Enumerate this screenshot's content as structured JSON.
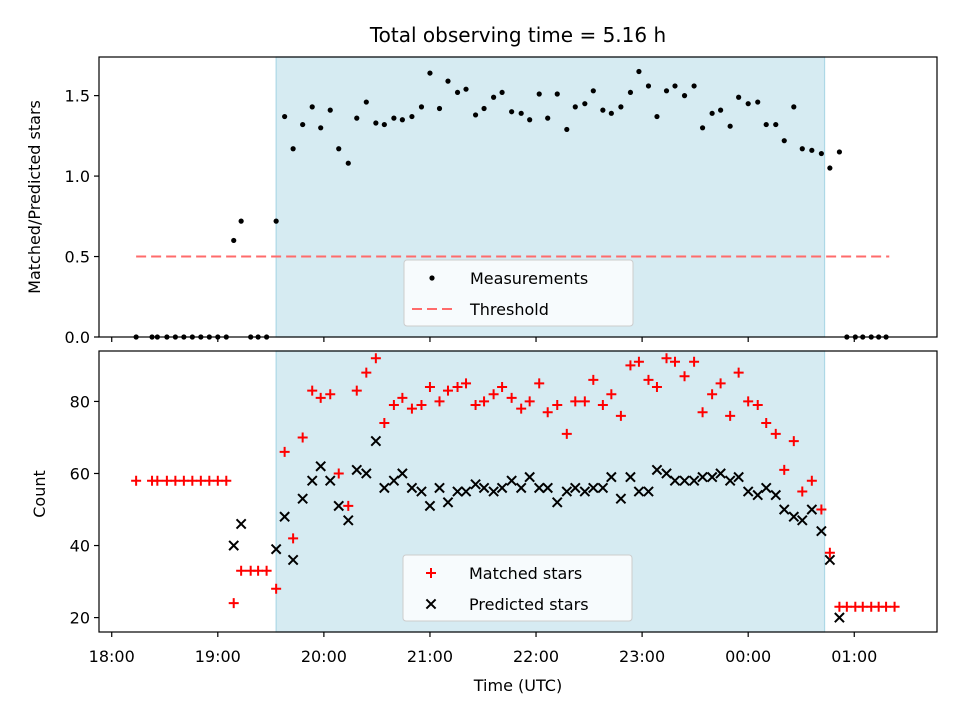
{
  "figure": {
    "title": "Total observing time = 5.16 h",
    "xlabel": "Time (UTC)",
    "xticks": [
      "18:00",
      "19:00",
      "20:00",
      "21:00",
      "22:00",
      "23:00",
      "00:00",
      "01:00"
    ]
  },
  "colors": {
    "band": "#add8e6",
    "threshold": "#ff6b6b",
    "matched": "#ff0000",
    "predicted": "#000000",
    "measurement": "#000000"
  },
  "top": {
    "ylabel": "Matched/Predicted stars",
    "yticks": [
      "0.0",
      "0.5",
      "1.0",
      "1.5"
    ],
    "legend": [
      "Measurements",
      "Threshold"
    ]
  },
  "bottom": {
    "ylabel": "Count",
    "yticks": [
      "20",
      "40",
      "60",
      "80"
    ],
    "legend": [
      "Matched stars",
      "Predicted stars"
    ]
  },
  "chart_data": [
    {
      "type": "scatter",
      "ylabel": "Matched/Predicted stars",
      "xlabel": "",
      "x_unit": "hours since 18:00 UTC",
      "xlim": [
        -0.12,
        7.78
      ],
      "ylim": [
        0,
        1.74
      ],
      "highlight_band": [
        1.55,
        6.72
      ],
      "threshold": {
        "name": "Threshold",
        "value": 0.5,
        "x_range": [
          0.23,
          7.33
        ]
      },
      "series": [
        {
          "name": "Measurements",
          "points": [
            [
              0.23,
              0
            ],
            [
              0.38,
              0
            ],
            [
              0.43,
              0
            ],
            [
              0.52,
              0
            ],
            [
              0.6,
              0
            ],
            [
              0.68,
              0
            ],
            [
              0.76,
              0
            ],
            [
              0.84,
              0
            ],
            [
              0.92,
              0
            ],
            [
              1.0,
              0
            ],
            [
              1.08,
              0
            ],
            [
              1.15,
              0.6
            ],
            [
              1.22,
              0.72
            ],
            [
              1.31,
              0
            ],
            [
              1.38,
              0
            ],
            [
              1.46,
              0
            ],
            [
              1.55,
              0.72
            ],
            [
              1.63,
              1.37
            ],
            [
              1.71,
              1.17
            ],
            [
              1.8,
              1.32
            ],
            [
              1.89,
              1.43
            ],
            [
              1.97,
              1.3
            ],
            [
              2.06,
              1.41
            ],
            [
              2.14,
              1.17
            ],
            [
              2.23,
              1.08
            ],
            [
              2.31,
              1.36
            ],
            [
              2.4,
              1.46
            ],
            [
              2.49,
              1.33
            ],
            [
              2.57,
              1.32
            ],
            [
              2.66,
              1.36
            ],
            [
              2.74,
              1.35
            ],
            [
              2.83,
              1.37
            ],
            [
              2.92,
              1.43
            ],
            [
              3.0,
              1.64
            ],
            [
              3.09,
              1.42
            ],
            [
              3.17,
              1.59
            ],
            [
              3.26,
              1.52
            ],
            [
              3.34,
              1.54
            ],
            [
              3.43,
              1.38
            ],
            [
              3.51,
              1.42
            ],
            [
              3.6,
              1.49
            ],
            [
              3.68,
              1.52
            ],
            [
              3.77,
              1.4
            ],
            [
              3.86,
              1.39
            ],
            [
              3.94,
              1.35
            ],
            [
              4.03,
              1.51
            ],
            [
              4.11,
              1.36
            ],
            [
              4.2,
              1.51
            ],
            [
              4.29,
              1.29
            ],
            [
              4.37,
              1.43
            ],
            [
              4.46,
              1.45
            ],
            [
              4.54,
              1.53
            ],
            [
              4.63,
              1.41
            ],
            [
              4.71,
              1.39
            ],
            [
              4.8,
              1.43
            ],
            [
              4.89,
              1.52
            ],
            [
              4.97,
              1.65
            ],
            [
              5.06,
              1.56
            ],
            [
              5.14,
              1.37
            ],
            [
              5.23,
              1.53
            ],
            [
              5.31,
              1.56
            ],
            [
              5.4,
              1.5
            ],
            [
              5.49,
              1.56
            ],
            [
              5.57,
              1.3
            ],
            [
              5.66,
              1.39
            ],
            [
              5.74,
              1.41
            ],
            [
              5.83,
              1.31
            ],
            [
              5.91,
              1.49
            ],
            [
              6.0,
              1.45
            ],
            [
              6.09,
              1.46
            ],
            [
              6.17,
              1.32
            ],
            [
              6.26,
              1.32
            ],
            [
              6.34,
              1.22
            ],
            [
              6.43,
              1.43
            ],
            [
              6.51,
              1.17
            ],
            [
              6.6,
              1.16
            ],
            [
              6.69,
              1.14
            ],
            [
              6.77,
              1.05
            ],
            [
              6.86,
              1.15
            ],
            [
              6.93,
              0
            ],
            [
              7.01,
              0
            ],
            [
              7.08,
              0
            ],
            [
              7.16,
              0
            ],
            [
              7.23,
              0
            ],
            [
              7.3,
              0
            ]
          ]
        }
      ]
    },
    {
      "type": "scatter",
      "ylabel": "Count",
      "xlabel": "Time (UTC)",
      "x_unit": "hours since 18:00 UTC",
      "xlim": [
        -0.12,
        7.78
      ],
      "ylim": [
        16,
        94
      ],
      "highlight_band": [
        1.55,
        6.72
      ],
      "series": [
        {
          "name": "Matched stars",
          "marker": "plus",
          "points": [
            [
              0.23,
              58
            ],
            [
              0.38,
              58
            ],
            [
              0.43,
              58
            ],
            [
              0.52,
              58
            ],
            [
              0.6,
              58
            ],
            [
              0.68,
              58
            ],
            [
              0.76,
              58
            ],
            [
              0.84,
              58
            ],
            [
              0.92,
              58
            ],
            [
              1.0,
              58
            ],
            [
              1.08,
              58
            ],
            [
              1.15,
              24
            ],
            [
              1.22,
              33
            ],
            [
              1.31,
              33
            ],
            [
              1.38,
              33
            ],
            [
              1.46,
              33
            ],
            [
              1.55,
              28
            ],
            [
              1.63,
              66
            ],
            [
              1.71,
              42
            ],
            [
              1.8,
              70
            ],
            [
              1.89,
              83
            ],
            [
              1.97,
              81
            ],
            [
              2.06,
              82
            ],
            [
              2.14,
              60
            ],
            [
              2.23,
              51
            ],
            [
              2.31,
              83
            ],
            [
              2.4,
              88
            ],
            [
              2.49,
              92
            ],
            [
              2.57,
              74
            ],
            [
              2.66,
              79
            ],
            [
              2.74,
              81
            ],
            [
              2.83,
              78
            ],
            [
              2.92,
              79
            ],
            [
              3.0,
              84
            ],
            [
              3.09,
              80
            ],
            [
              3.17,
              83
            ],
            [
              3.26,
              84
            ],
            [
              3.34,
              85
            ],
            [
              3.43,
              79
            ],
            [
              3.51,
              80
            ],
            [
              3.6,
              82
            ],
            [
              3.68,
              84
            ],
            [
              3.77,
              81
            ],
            [
              3.86,
              78
            ],
            [
              3.94,
              80
            ],
            [
              4.03,
              85
            ],
            [
              4.11,
              77
            ],
            [
              4.2,
              79
            ],
            [
              4.29,
              71
            ],
            [
              4.37,
              80
            ],
            [
              4.46,
              80
            ],
            [
              4.54,
              86
            ],
            [
              4.63,
              79
            ],
            [
              4.71,
              82
            ],
            [
              4.8,
              76
            ],
            [
              4.89,
              90
            ],
            [
              4.97,
              91
            ],
            [
              5.06,
              86
            ],
            [
              5.14,
              84
            ],
            [
              5.23,
              92
            ],
            [
              5.31,
              91
            ],
            [
              5.4,
              87
            ],
            [
              5.49,
              91
            ],
            [
              5.57,
              77
            ],
            [
              5.66,
              82
            ],
            [
              5.74,
              85
            ],
            [
              5.83,
              76
            ],
            [
              5.91,
              88
            ],
            [
              6.0,
              80
            ],
            [
              6.09,
              79
            ],
            [
              6.17,
              74
            ],
            [
              6.26,
              71
            ],
            [
              6.34,
              61
            ],
            [
              6.43,
              69
            ],
            [
              6.51,
              55
            ],
            [
              6.6,
              58
            ],
            [
              6.69,
              50
            ],
            [
              6.77,
              38
            ],
            [
              6.86,
              23
            ],
            [
              6.93,
              23
            ],
            [
              7.01,
              23
            ],
            [
              7.08,
              23
            ],
            [
              7.16,
              23
            ],
            [
              7.23,
              23
            ],
            [
              7.3,
              23
            ],
            [
              7.38,
              23
            ]
          ]
        },
        {
          "name": "Predicted stars",
          "marker": "x",
          "points": [
            [
              1.15,
              40
            ],
            [
              1.22,
              46
            ],
            [
              1.55,
              39
            ],
            [
              1.63,
              48
            ],
            [
              1.71,
              36
            ],
            [
              1.8,
              53
            ],
            [
              1.89,
              58
            ],
            [
              1.97,
              62
            ],
            [
              2.06,
              58
            ],
            [
              2.14,
              51
            ],
            [
              2.23,
              47
            ],
            [
              2.31,
              61
            ],
            [
              2.4,
              60
            ],
            [
              2.49,
              69
            ],
            [
              2.57,
              56
            ],
            [
              2.66,
              58
            ],
            [
              2.74,
              60
            ],
            [
              2.83,
              56
            ],
            [
              2.92,
              55
            ],
            [
              3.0,
              51
            ],
            [
              3.09,
              56
            ],
            [
              3.17,
              52
            ],
            [
              3.26,
              55
            ],
            [
              3.34,
              55
            ],
            [
              3.43,
              57
            ],
            [
              3.51,
              56
            ],
            [
              3.6,
              55
            ],
            [
              3.68,
              56
            ],
            [
              3.77,
              58
            ],
            [
              3.86,
              56
            ],
            [
              3.94,
              59
            ],
            [
              4.03,
              56
            ],
            [
              4.11,
              56
            ],
            [
              4.2,
              52
            ],
            [
              4.29,
              55
            ],
            [
              4.37,
              56
            ],
            [
              4.46,
              55
            ],
            [
              4.54,
              56
            ],
            [
              4.63,
              56
            ],
            [
              4.71,
              59
            ],
            [
              4.8,
              53
            ],
            [
              4.89,
              59
            ],
            [
              4.97,
              55
            ],
            [
              5.06,
              55
            ],
            [
              5.14,
              61
            ],
            [
              5.23,
              60
            ],
            [
              5.31,
              58
            ],
            [
              5.4,
              58
            ],
            [
              5.49,
              58
            ],
            [
              5.57,
              59
            ],
            [
              5.66,
              59
            ],
            [
              5.74,
              60
            ],
            [
              5.83,
              58
            ],
            [
              5.91,
              59
            ],
            [
              6.0,
              55
            ],
            [
              6.09,
              54
            ],
            [
              6.17,
              56
            ],
            [
              6.26,
              54
            ],
            [
              6.34,
              50
            ],
            [
              6.43,
              48
            ],
            [
              6.51,
              47
            ],
            [
              6.6,
              50
            ],
            [
              6.69,
              44
            ],
            [
              6.77,
              36
            ],
            [
              6.86,
              20
            ]
          ]
        }
      ]
    }
  ]
}
